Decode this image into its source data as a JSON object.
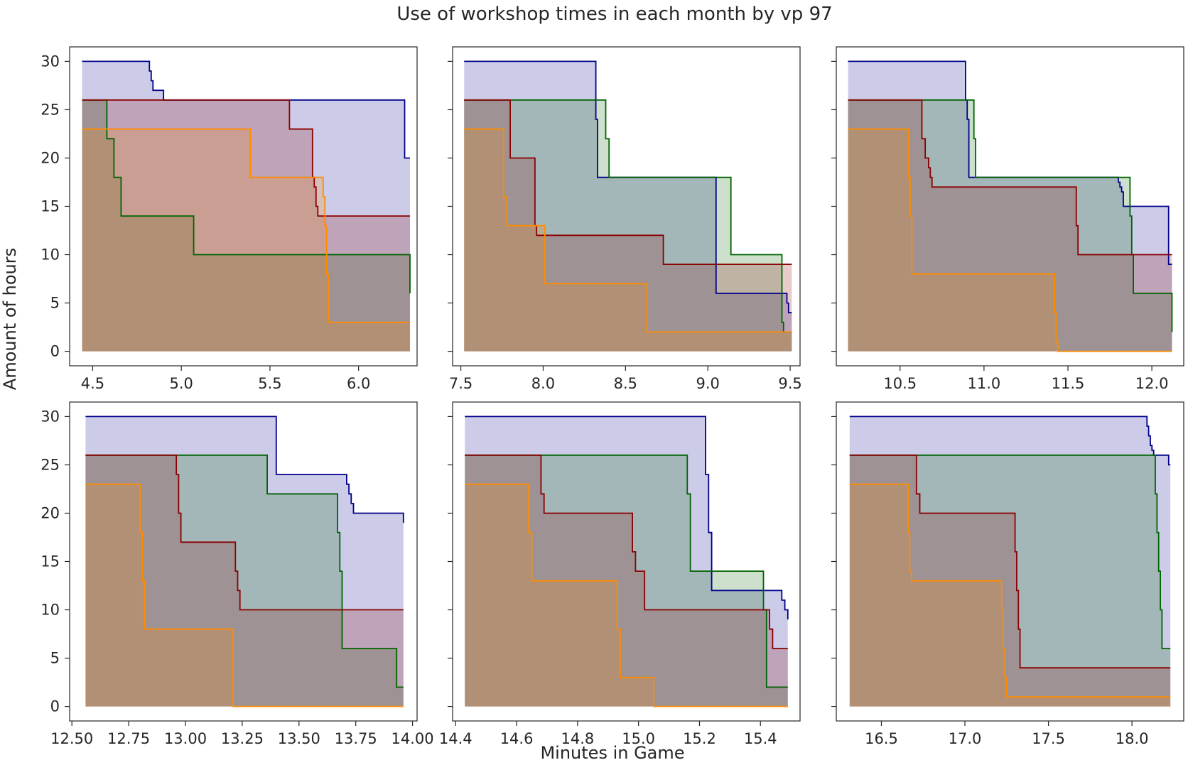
{
  "figure": {
    "title": "Use of workshop times in each month by vp 97",
    "xlabel": "Minutes in Game",
    "ylabel": "Amount of hours"
  },
  "series_colors": [
    "#00008b",
    "#006400",
    "#8b0000",
    "#ff8c00"
  ],
  "chart_data": [
    {
      "type": "area",
      "xlim": [
        4.37,
        6.33
      ],
      "ylim": [
        -1.5,
        31.5
      ],
      "xticks": [
        4.5,
        5.0,
        5.5,
        6.0
      ],
      "xtick_labels": [
        "4.5",
        "5.0",
        "5.5",
        "6.0"
      ],
      "yticks": [
        0,
        5,
        10,
        15,
        20,
        25,
        30
      ],
      "ytick_labels": [
        "0",
        "5",
        "10",
        "15",
        "20",
        "25",
        "30"
      ],
      "series": [
        {
          "x": [
            4.44,
            4.82,
            4.83,
            4.84,
            4.86,
            4.9,
            6.26,
            6.29
          ],
          "y": [
            30,
            29,
            28,
            27,
            27,
            26,
            20,
            20
          ]
        },
        {
          "x": [
            4.44,
            4.58,
            4.62,
            4.66,
            5.07,
            6.29,
            6.29
          ],
          "y": [
            26,
            22,
            18,
            14,
            10,
            6,
            6
          ]
        },
        {
          "x": [
            4.44,
            5.61,
            5.74,
            5.75,
            5.76,
            5.77,
            6.29
          ],
          "y": [
            26,
            23,
            18,
            17,
            15,
            14,
            14
          ]
        },
        {
          "x": [
            4.44,
            5.39,
            5.8,
            5.81,
            5.82,
            5.83,
            6.29
          ],
          "y": [
            23,
            18,
            16,
            13,
            8,
            3,
            3
          ]
        }
      ]
    },
    {
      "type": "area",
      "xlim": [
        7.45,
        9.56
      ],
      "ylim": [
        -1.5,
        31.5
      ],
      "xticks": [
        7.5,
        8.0,
        8.5,
        9.0,
        9.5
      ],
      "xtick_labels": [
        "7.5",
        "8.0",
        "8.5",
        "9.0",
        "9.5"
      ],
      "yticks": [
        0,
        5,
        10,
        15,
        20,
        25,
        30
      ],
      "ytick_labels": [
        "0",
        "5",
        "10",
        "15",
        "20",
        "25",
        "30"
      ],
      "series": [
        {
          "x": [
            7.52,
            8.32,
            8.33,
            9.05,
            9.48,
            9.49,
            9.5,
            9.51
          ],
          "y": [
            30,
            24,
            18,
            6,
            5,
            4,
            4,
            4
          ]
        },
        {
          "x": [
            7.52,
            8.38,
            8.4,
            9.14,
            9.45,
            9.46,
            9.51
          ],
          "y": [
            26,
            22,
            18,
            10,
            3,
            2,
            2
          ]
        },
        {
          "x": [
            7.52,
            7.8,
            7.95,
            7.96,
            8.73,
            9.51
          ],
          "y": [
            26,
            20,
            13,
            12,
            9,
            9
          ]
        },
        {
          "x": [
            7.52,
            7.76,
            7.78,
            8.01,
            8.63,
            9.51
          ],
          "y": [
            23,
            16,
            13,
            7,
            2,
            2
          ]
        }
      ]
    },
    {
      "type": "area",
      "xlim": [
        10.12,
        12.19
      ],
      "ylim": [
        -1.5,
        31.5
      ],
      "xticks": [
        10.5,
        11.0,
        11.5,
        12.0
      ],
      "xtick_labels": [
        "10.5",
        "11.0",
        "11.5",
        "12.0"
      ],
      "yticks": [
        0,
        5,
        10,
        15,
        20,
        25,
        30
      ],
      "ytick_labels": [
        "0",
        "5",
        "10",
        "15",
        "20",
        "25",
        "30"
      ],
      "series": [
        {
          "x": [
            10.19,
            10.89,
            10.9,
            10.91,
            11.8,
            11.81,
            11.82,
            11.83,
            12.1,
            12.12
          ],
          "y": [
            30,
            26,
            24,
            18,
            17.5,
            17,
            16.5,
            15,
            9,
            9
          ]
        },
        {
          "x": [
            10.19,
            10.94,
            10.95,
            11.87,
            11.88,
            11.89,
            12.12
          ],
          "y": [
            26,
            22,
            18,
            14,
            10,
            6,
            2
          ]
        },
        {
          "x": [
            10.19,
            10.63,
            10.65,
            10.67,
            10.68,
            10.69,
            11.55,
            11.56,
            12.12
          ],
          "y": [
            26,
            22,
            20,
            19,
            18,
            17,
            13,
            10,
            10
          ]
        },
        {
          "x": [
            10.19,
            10.55,
            10.56,
            10.57,
            11.42,
            11.43,
            11.44,
            12.12
          ],
          "y": [
            23,
            18,
            14,
            8,
            4,
            1,
            0,
            0
          ]
        }
      ]
    },
    {
      "type": "area",
      "xlim": [
        12.49,
        14.02
      ],
      "ylim": [
        -1.5,
        31.5
      ],
      "xticks": [
        12.5,
        12.75,
        13.0,
        13.25,
        13.5,
        13.75,
        14.0
      ],
      "xtick_labels": [
        "12.50",
        "12.75",
        "13.00",
        "13.25",
        "13.50",
        "13.75",
        "14.00"
      ],
      "yticks": [
        0,
        5,
        10,
        15,
        20,
        25,
        30
      ],
      "ytick_labels": [
        "0",
        "5",
        "10",
        "15",
        "20",
        "25",
        "30"
      ],
      "series": [
        {
          "x": [
            12.56,
            13.4,
            13.71,
            13.72,
            13.73,
            13.74,
            13.96,
            13.96
          ],
          "y": [
            30,
            24,
            23,
            22,
            21,
            20,
            19,
            19
          ]
        },
        {
          "x": [
            12.56,
            13.36,
            13.67,
            13.68,
            13.69,
            13.93,
            13.96
          ],
          "y": [
            26,
            22,
            18,
            14,
            6,
            2,
            2
          ]
        },
        {
          "x": [
            12.56,
            12.96,
            12.97,
            12.98,
            13.22,
            13.23,
            13.24,
            13.96
          ],
          "y": [
            26,
            24,
            20,
            17,
            14,
            12,
            10,
            10
          ]
        },
        {
          "x": [
            12.56,
            12.8,
            12.81,
            12.82,
            13.21,
            13.96
          ],
          "y": [
            23,
            18,
            13,
            8,
            0,
            0
          ]
        }
      ]
    },
    {
      "type": "area",
      "xlim": [
        14.39,
        15.53
      ],
      "ylim": [
        -1.5,
        31.5
      ],
      "xticks": [
        14.4,
        14.6,
        14.8,
        15.0,
        15.2,
        15.4
      ],
      "xtick_labels": [
        "14.4",
        "14.6",
        "14.8",
        "15.0",
        "15.2",
        "15.4"
      ],
      "yticks": [
        0,
        5,
        10,
        15,
        20,
        25,
        30
      ],
      "ytick_labels": [
        "0",
        "5",
        "10",
        "15",
        "20",
        "25",
        "30"
      ],
      "series": [
        {
          "x": [
            14.43,
            15.22,
            15.23,
            15.24,
            15.47,
            15.48,
            15.49,
            15.49
          ],
          "y": [
            30,
            24,
            18,
            12,
            11,
            10,
            9,
            9
          ]
        },
        {
          "x": [
            14.43,
            15.16,
            15.17,
            15.41,
            15.42,
            15.49
          ],
          "y": [
            26,
            22,
            14,
            10,
            2,
            2
          ]
        },
        {
          "x": [
            14.43,
            14.68,
            14.69,
            14.98,
            14.99,
            15.02,
            15.43,
            15.44,
            15.49
          ],
          "y": [
            26,
            22,
            20,
            16,
            14,
            10,
            8,
            6,
            6
          ]
        },
        {
          "x": [
            14.43,
            14.64,
            14.65,
            14.93,
            14.94,
            15.05,
            15.49
          ],
          "y": [
            23,
            18,
            13,
            8,
            3,
            0,
            0
          ]
        }
      ]
    },
    {
      "type": "area",
      "xlim": [
        16.23,
        18.31
      ],
      "ylim": [
        -1.5,
        31.5
      ],
      "xticks": [
        16.5,
        17.0,
        17.5,
        18.0
      ],
      "xtick_labels": [
        "16.5",
        "17.0",
        "17.5",
        "18.0"
      ],
      "yticks": [
        0,
        5,
        10,
        15,
        20,
        25,
        30
      ],
      "ytick_labels": [
        "0",
        "5",
        "10",
        "15",
        "20",
        "25",
        "30"
      ],
      "series": [
        {
          "x": [
            16.31,
            18.09,
            18.1,
            18.11,
            18.12,
            18.13,
            18.22,
            18.23
          ],
          "y": [
            30,
            29,
            28,
            27,
            26.5,
            26,
            25,
            25
          ]
        },
        {
          "x": [
            16.31,
            18.14,
            18.15,
            18.16,
            18.17,
            18.18,
            18.23
          ],
          "y": [
            26,
            22,
            18,
            14,
            10,
            6,
            6
          ]
        },
        {
          "x": [
            16.31,
            16.71,
            16.73,
            17.3,
            17.31,
            17.32,
            17.33,
            18.23
          ],
          "y": [
            26,
            22,
            20,
            16,
            12,
            8,
            4,
            4
          ]
        },
        {
          "x": [
            16.31,
            16.66,
            16.67,
            16.68,
            17.22,
            17.23,
            17.24,
            17.25,
            18.23
          ],
          "y": [
            23,
            18,
            14,
            13,
            10,
            6,
            3,
            1,
            1
          ]
        }
      ]
    }
  ]
}
